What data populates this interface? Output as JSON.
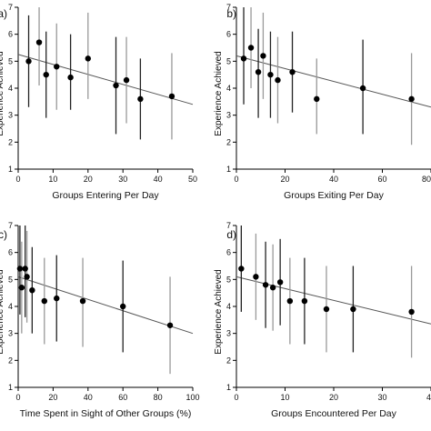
{
  "chart_data": [
    {
      "type": "scatter",
      "panel_label": "a)",
      "xlabel": "Groups Entering Per Day",
      "ylabel": "Experience Achieved",
      "xlim": [
        0,
        50
      ],
      "ylim": [
        1,
        7
      ],
      "xticks": [
        0,
        10,
        20,
        30,
        40,
        50
      ],
      "yticks": [
        1,
        2,
        3,
        4,
        5,
        6,
        7
      ],
      "x": [
        3,
        6,
        8,
        11,
        15,
        20,
        28,
        31,
        35,
        44
      ],
      "y": [
        5.0,
        5.7,
        4.5,
        4.8,
        4.4,
        5.1,
        4.1,
        4.3,
        3.6,
        3.7
      ],
      "low": [
        3.3,
        4.1,
        2.9,
        3.2,
        3.2,
        3.6,
        2.3,
        2.7,
        2.1,
        2.1
      ],
      "high": [
        6.7,
        7.0,
        6.1,
        6.4,
        6.0,
        6.8,
        5.9,
        5.9,
        5.1,
        5.3
      ],
      "fit": [
        [
          0,
          5.25
        ],
        [
          50,
          3.4
        ]
      ]
    },
    {
      "type": "scatter",
      "panel_label": "b)",
      "xlabel": "Groups Exiting Per Day",
      "ylabel": "Experience Achieved",
      "xlim": [
        0,
        80
      ],
      "ylim": [
        1,
        7
      ],
      "xticks": [
        0,
        20,
        40,
        60,
        80
      ],
      "yticks": [
        1,
        2,
        3,
        4,
        5,
        6,
        7
      ],
      "x": [
        3,
        6,
        9,
        11,
        14,
        17,
        23,
        33,
        52,
        72
      ],
      "y": [
        5.1,
        5.5,
        4.6,
        5.2,
        4.5,
        4.3,
        4.6,
        3.6,
        4.0,
        3.6
      ],
      "low": [
        3.4,
        4.0,
        2.9,
        3.6,
        2.9,
        2.7,
        3.1,
        2.3,
        2.3,
        1.9
      ],
      "high": [
        7.0,
        7.0,
        6.2,
        6.8,
        6.1,
        5.9,
        6.1,
        5.1,
        5.8,
        5.3
      ],
      "fit": [
        [
          0,
          5.2
        ],
        [
          80,
          3.3
        ]
      ]
    },
    {
      "type": "scatter",
      "panel_label": "c)",
      "xlabel": "Time Spent in Sight of Other Groups (%)",
      "ylabel": "Experience Achieved",
      "xlim": [
        0,
        100
      ],
      "ylim": [
        1,
        7
      ],
      "xticks": [
        0,
        20,
        40,
        60,
        80,
        100
      ],
      "yticks": [
        1,
        2,
        3,
        4,
        5,
        6,
        7
      ],
      "x": [
        1,
        2,
        4,
        5,
        8,
        15,
        22,
        37,
        60,
        87
      ],
      "y": [
        5.4,
        4.7,
        5.4,
        5.1,
        4.6,
        4.2,
        4.3,
        4.2,
        4.0,
        3.3
      ],
      "low": [
        3.7,
        3.0,
        3.6,
        3.4,
        3.0,
        2.6,
        2.7,
        2.5,
        2.3,
        1.5
      ],
      "high": [
        7.0,
        6.4,
        7.0,
        6.8,
        6.2,
        5.8,
        5.9,
        5.8,
        5.7,
        5.1
      ],
      "fit": [
        [
          0,
          5.1
        ],
        [
          100,
          3.0
        ]
      ]
    },
    {
      "type": "scatter",
      "panel_label": "d)",
      "xlabel": "Groups Encountered Per Day",
      "ylabel": "Experience Achieved",
      "xlim": [
        0,
        40
      ],
      "ylim": [
        1,
        7
      ],
      "xticks": [
        0,
        10,
        20,
        30,
        40
      ],
      "yticks": [
        1,
        2,
        3,
        4,
        5,
        6,
        7
      ],
      "x": [
        1,
        4,
        6,
        7.5,
        9,
        11,
        14,
        18.5,
        24,
        36
      ],
      "y": [
        5.4,
        5.1,
        4.8,
        4.7,
        4.9,
        4.2,
        4.2,
        3.9,
        3.9,
        3.8
      ],
      "low": [
        3.8,
        3.5,
        3.2,
        3.1,
        3.3,
        2.6,
        2.6,
        2.3,
        2.3,
        2.1
      ],
      "high": [
        7.0,
        6.7,
        6.4,
        6.3,
        6.5,
        5.8,
        5.8,
        5.5,
        5.5,
        5.5
      ],
      "fit": [
        [
          0,
          5.1
        ],
        [
          40,
          3.35
        ]
      ]
    }
  ]
}
